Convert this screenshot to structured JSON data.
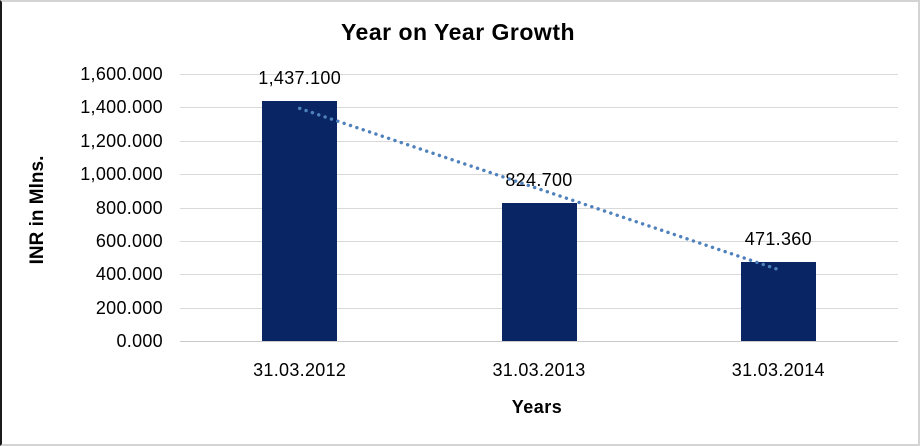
{
  "chart_data": {
    "type": "bar",
    "title": "Year on Year Growth",
    "xlabel": "Years",
    "ylabel": "INR in Mlns.",
    "categories": [
      "31.03.2012",
      "31.03.2013",
      "31.03.2014"
    ],
    "values": [
      1437.1,
      824.7,
      471.36
    ],
    "value_labels": [
      "1,437.100",
      "824.700",
      "471.360"
    ],
    "ylim": [
      0,
      1600
    ],
    "ytick_step": 200,
    "ytick_labels": [
      "0.000",
      "200.000",
      "400.000",
      "600.000",
      "800.000",
      "1,000.000",
      "1,200.000",
      "1,400.000",
      "1,600.000"
    ],
    "grid": true,
    "legend": false,
    "trendline": {
      "type": "linear",
      "style": "dotted",
      "color": "#4f81bd"
    },
    "colors": {
      "bar": "#0a2563",
      "gridline": "#d9d9d9",
      "axis_line": "#c9c9c9",
      "text": "#000000",
      "background": "#ffffff"
    }
  }
}
